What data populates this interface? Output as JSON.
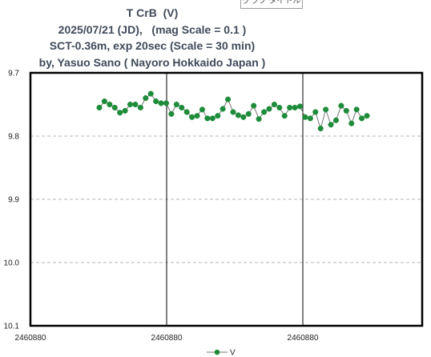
{
  "chart_data": {
    "type": "line",
    "title_lines": [
      "T CrB  (V)",
      "2025/07/21 (JD),   (mag Scale = 0.1 )",
      "SCT-0.36m, exp 20sec (Scale = 30 min)",
      "by, Yasuo Sano ( Nayoro Hokkaido Japan )"
    ],
    "floating_label": "グラフ タイトル",
    "xlabel": "",
    "ylabel": "",
    "x_tick_labels": [
      "2460880",
      "2460880",
      "2460880"
    ],
    "y_tick_labels": [
      "9.7",
      "9.8",
      "9.9",
      "10.0",
      "10.1"
    ],
    "ylim": [
      9.7,
      10.1
    ],
    "y_inverted": true,
    "grid": "horizontal dashed",
    "legend_position": "bottom",
    "series": [
      {
        "name": "V",
        "color": "#1e8c3a",
        "values": [
          9.755,
          9.745,
          9.75,
          9.755,
          9.763,
          9.76,
          9.75,
          9.75,
          9.755,
          9.74,
          9.733,
          9.745,
          9.748,
          9.748,
          9.765,
          9.75,
          9.755,
          9.762,
          9.77,
          9.768,
          9.758,
          9.772,
          9.772,
          9.768,
          9.757,
          9.742,
          9.762,
          9.767,
          9.77,
          9.765,
          9.752,
          9.773,
          9.762,
          9.757,
          9.75,
          9.755,
          9.768,
          9.755,
          9.755,
          9.753,
          9.77,
          9.772,
          9.762,
          9.788,
          9.758,
          9.782,
          9.775,
          9.752,
          9.76,
          9.78,
          9.758,
          9.772,
          9.768
        ]
      }
    ]
  }
}
